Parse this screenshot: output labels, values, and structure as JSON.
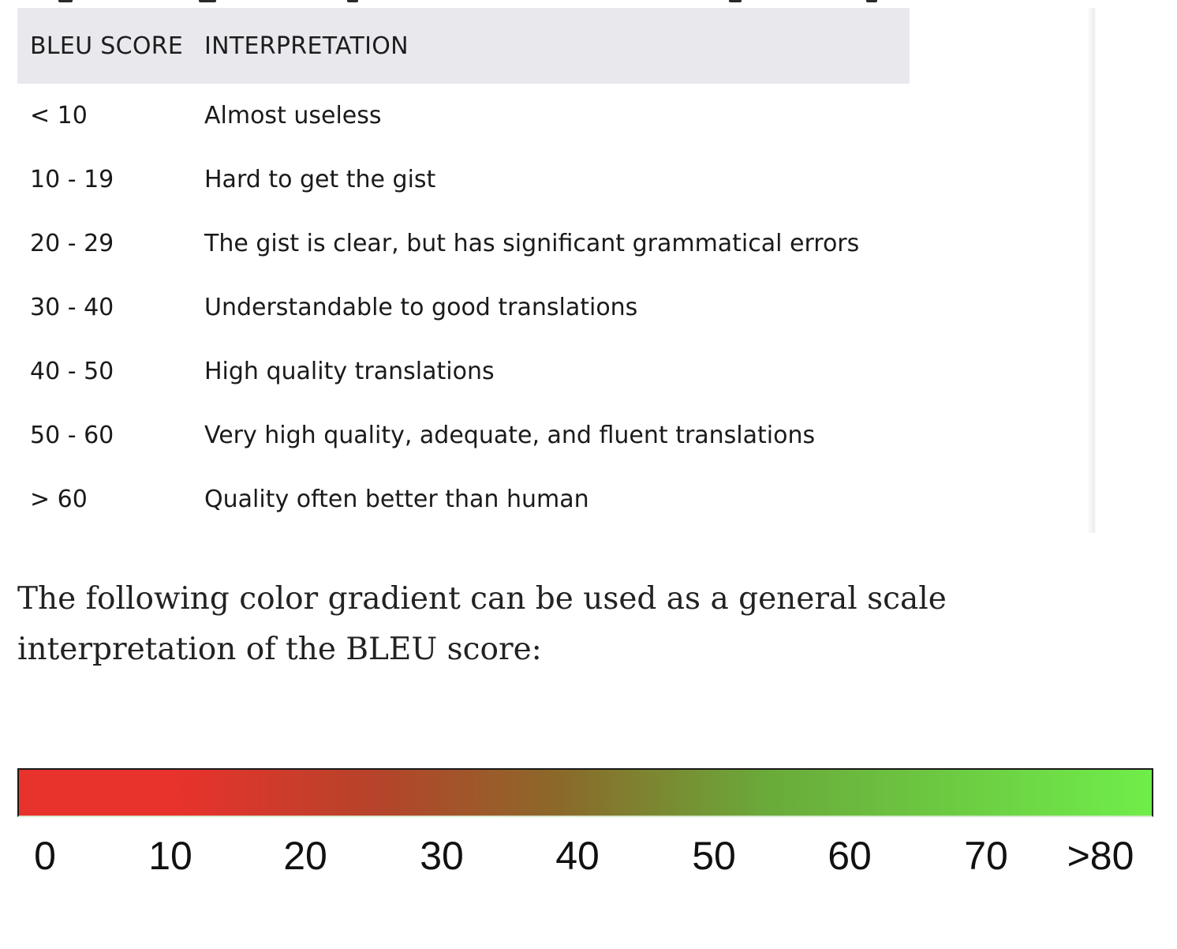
{
  "table": {
    "headers": [
      "BLEU SCORE",
      "INTERPRETATION"
    ],
    "rows": [
      {
        "score": "< 10",
        "interpretation": "Almost useless"
      },
      {
        "score": "10 - 19",
        "interpretation": "Hard to get the gist"
      },
      {
        "score": "20 - 29",
        "interpretation": "The gist is clear, but has significant grammatical errors"
      },
      {
        "score": "30 - 40",
        "interpretation": "Understandable to good translations"
      },
      {
        "score": "40 - 50",
        "interpretation": "High quality translations"
      },
      {
        "score": "50 - 60",
        "interpretation": "Very high quality, adequate, and fluent translations"
      },
      {
        "score": "> 60",
        "interpretation": "Quality often better than human"
      }
    ]
  },
  "paragraph": "The following color gradient can be used as a general scale interpretation of the BLEU score:",
  "gradient_scale": {
    "labels": [
      "0",
      "10",
      "20",
      "30",
      "40",
      "50",
      "60",
      "70",
      ">80"
    ],
    "colors": {
      "low": "#e8322c",
      "mid_low": "#b4442a",
      "mid": "#8a6a2a",
      "mid_high": "#6aaa3a",
      "high": "#6fee4a"
    }
  }
}
